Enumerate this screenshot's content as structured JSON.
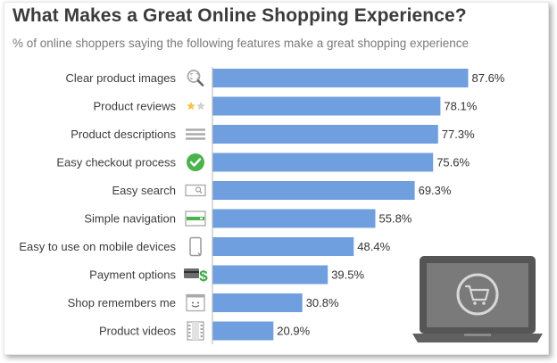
{
  "colors": {
    "bar": "#6f9fde",
    "axis": "#b5b5b5",
    "icon_grey": "#a9a9a9",
    "check_green": "#4bb34b",
    "star": "#f4c343",
    "cash_green": "#3aa845",
    "laptop_dark": "#555555"
  },
  "chart_data": {
    "type": "bar",
    "orientation": "horizontal",
    "title": "What Makes a Great Online Shopping Experience?",
    "subtitle": "% of online shoppers saying the following features make a great shopping experience",
    "categories": [
      "Clear product images",
      "Product reviews",
      "Product descriptions",
      "Easy checkout process",
      "Easy search",
      "Simple navigation",
      "Easy to use on mobile devices",
      "Payment options",
      "Shop remembers me",
      "Product videos"
    ],
    "values": [
      87.6,
      78.1,
      77.3,
      75.6,
      69.3,
      55.8,
      48.4,
      39.5,
      30.8,
      20.9
    ],
    "value_labels": [
      "87.6%",
      "78.1%",
      "77.3%",
      "75.6%",
      "69.3%",
      "55.8%",
      "48.4%",
      "39.5%",
      "30.8%",
      "20.9%"
    ],
    "icons": [
      "magnifier-icon",
      "stars-icon",
      "lines-icon",
      "checkmark-icon",
      "search-box-icon",
      "navigation-bar-icon",
      "mobile-phone-icon",
      "card-and-cash-icon",
      "smiley-window-icon",
      "film-icon"
    ],
    "xlim": [
      0,
      100
    ],
    "grid": false,
    "legend": "none",
    "decoration": "laptop-with-cart-icon"
  }
}
